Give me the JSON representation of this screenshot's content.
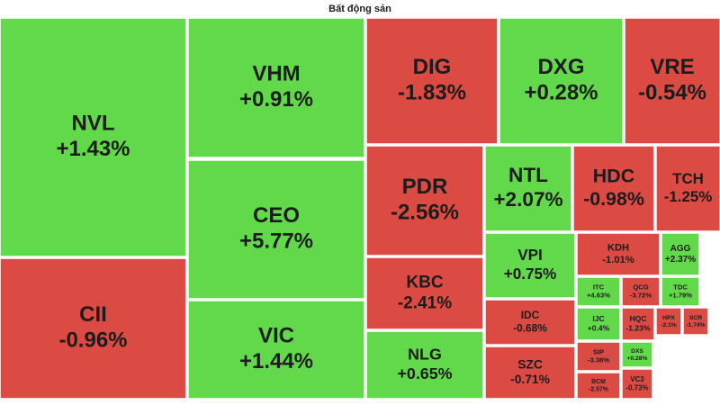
{
  "chart_data": {
    "type": "treemap",
    "title": "Bất động sản",
    "categories": [
      "NVL",
      "CII",
      "VHM",
      "CEO",
      "VIC",
      "DIG",
      "DXG",
      "VRE",
      "PDR",
      "KBC",
      "NLG",
      "NTL",
      "HDC",
      "TCH",
      "VPI",
      "IDC",
      "SZC",
      "KDH",
      "AGG",
      "ITC",
      "QCG",
      "TDC",
      "IJC",
      "SIP",
      "BCM",
      "HQC",
      "HPX",
      "SCR",
      "DXS",
      "VC3"
    ],
    "values": [
      1.43,
      -0.96,
      0.91,
      5.77,
      1.44,
      -1.83,
      0.28,
      -0.54,
      -2.56,
      -2.41,
      0.65,
      2.07,
      -0.98,
      -1.25,
      0.75,
      -0.68,
      -0.71,
      -1.01,
      2.37,
      4.63,
      -3.72,
      1.79,
      0.4,
      -3.38,
      -2.57,
      -1.23,
      -2.1,
      -1.74,
      0.28,
      -0.73
    ],
    "value_labels": [
      "+1.43%",
      "-0.96%",
      "+0.91%",
      "+5.77%",
      "+1.44%",
      "-1.83%",
      "+0.28%",
      "-0.54%",
      "-2.56%",
      "-2.41%",
      "+0.65%",
      "+2.07%",
      "-0.98%",
      "-1.25%",
      "+0.75%",
      "-0.68%",
      "-0.71%",
      "-1.01%",
      "+2.37%",
      "+4.63%",
      "-3.72%",
      "+1.79%",
      "+0.4%",
      "-3.38%",
      "-2.57%",
      "-1.23%",
      "-2.1%",
      "-1.74%",
      "+0.28%",
      "-0.73%"
    ],
    "colors": {
      "up": "#62d94b",
      "down": "#dc4a44"
    }
  }
}
